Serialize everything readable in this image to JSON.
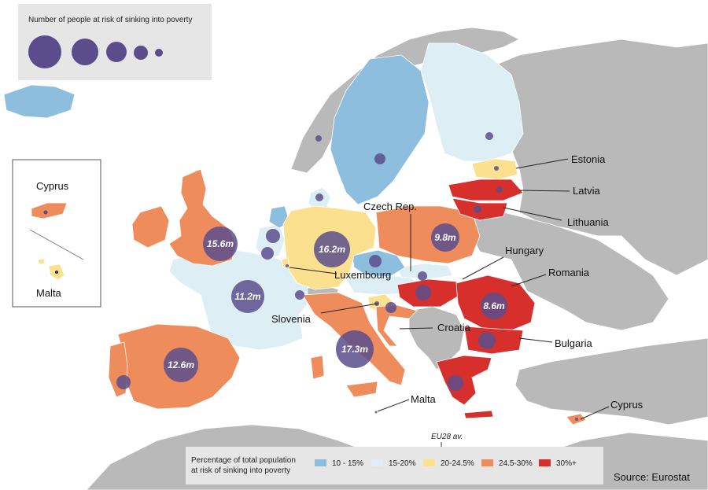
{
  "size_legend": {
    "title": "Number of people at risk of sinking into poverty"
  },
  "inset": {
    "cyprus_label": "Cyprus",
    "malta_label": "Malta"
  },
  "colors": {
    "c10_15": "#8dbedd",
    "c15_20": "#ddeef5",
    "c20_24": "#fbe18f",
    "c24_30": "#ee8c5c",
    "c30": "#d7302c",
    "non_eu": "#b9b9b9",
    "sea": "#ffffff",
    "bubble": "#5b4d8c"
  },
  "country_labels": {
    "estonia": "Estonia",
    "latvia": "Latvia",
    "lithuania": "Lithuania",
    "czech": "Czech Rep.",
    "hungary": "Hungary",
    "romania": "Romania",
    "luxembourg": "Luxembourg",
    "slovenia": "Slovenia",
    "croatia": "Croatia",
    "bulgaria": "Bulgaria",
    "malta": "Malta",
    "cyprus": "Cyprus"
  },
  "bubbles": {
    "uk": "15.6m",
    "germany": "16.2m",
    "poland": "9.8m",
    "france": "11.2m",
    "romania": "8.6m",
    "italy": "17.3m",
    "spain": "12.6m"
  },
  "legend": {
    "eu_avg": "EU28 av.",
    "title_line1": "Percentage of total population",
    "title_line2": "at risk of sinking into poverty",
    "items": [
      "10 - 15%",
      "15-20%",
      "20-24.5%",
      "24.5-30%",
      "30%+"
    ]
  },
  "source": "Source: Eurostat"
}
